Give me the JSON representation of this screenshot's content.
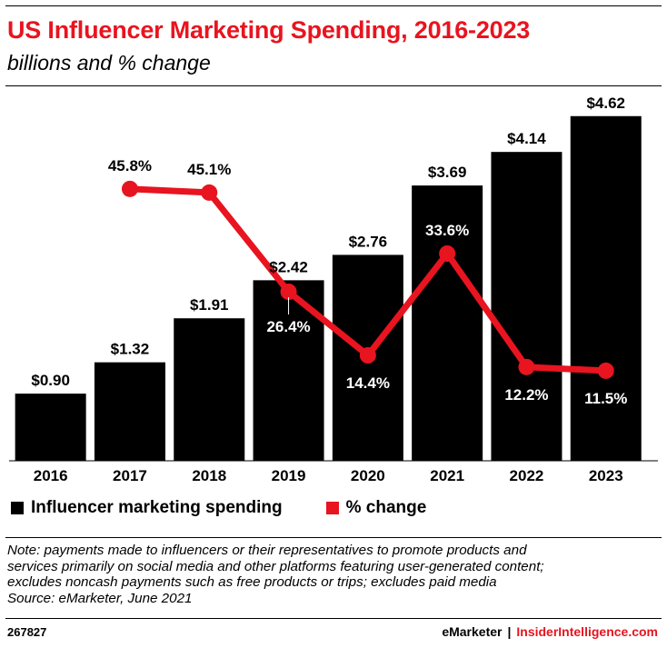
{
  "header": {
    "title": "US Influencer Marketing Spending, 2016-2023",
    "subtitle": "billions and % change"
  },
  "legend": {
    "bars_label": "Influencer marketing spending",
    "line_label": "% change"
  },
  "note": {
    "lines": [
      "Note: payments made to influencers or their representatives to promote products and",
      "services primarily on social media and other platforms featuring user-generated content;",
      "excludes noncash payments such as free products or trips; excludes paid media",
      "Source: eMarketer, June 2021"
    ]
  },
  "footer": {
    "chart_id": "267827",
    "brand_left": "eMarketer",
    "separator": "|",
    "brand_right": "InsiderIntelligence.com"
  },
  "colors": {
    "bars": "#000000",
    "line": "#e8141f",
    "title": "#e8141f"
  },
  "chart_data": {
    "type": "bar",
    "categories": [
      "2016",
      "2017",
      "2018",
      "2019",
      "2020",
      "2021",
      "2022",
      "2023"
    ],
    "series": [
      {
        "name": "Influencer marketing spending",
        "type": "bar",
        "values": [
          0.9,
          1.32,
          1.91,
          2.42,
          2.76,
          3.69,
          4.14,
          4.62
        ],
        "labels": [
          "$0.90",
          "$1.32",
          "$1.91",
          "$2.42",
          "$2.76",
          "$3.69",
          "$4.14",
          "$4.62"
        ]
      },
      {
        "name": "% change",
        "type": "line",
        "values": [
          null,
          45.8,
          45.1,
          26.4,
          14.4,
          33.6,
          12.2,
          11.5
        ],
        "labels": [
          null,
          "45.8%",
          "45.1%",
          "26.4%",
          "14.4%",
          "33.6%",
          "12.2%",
          "11.5%"
        ]
      }
    ],
    "bar_ylim": [
      0,
      4.8
    ],
    "line_ylim": [
      0,
      60
    ],
    "grid": false,
    "legend_position": "bottom-left"
  }
}
